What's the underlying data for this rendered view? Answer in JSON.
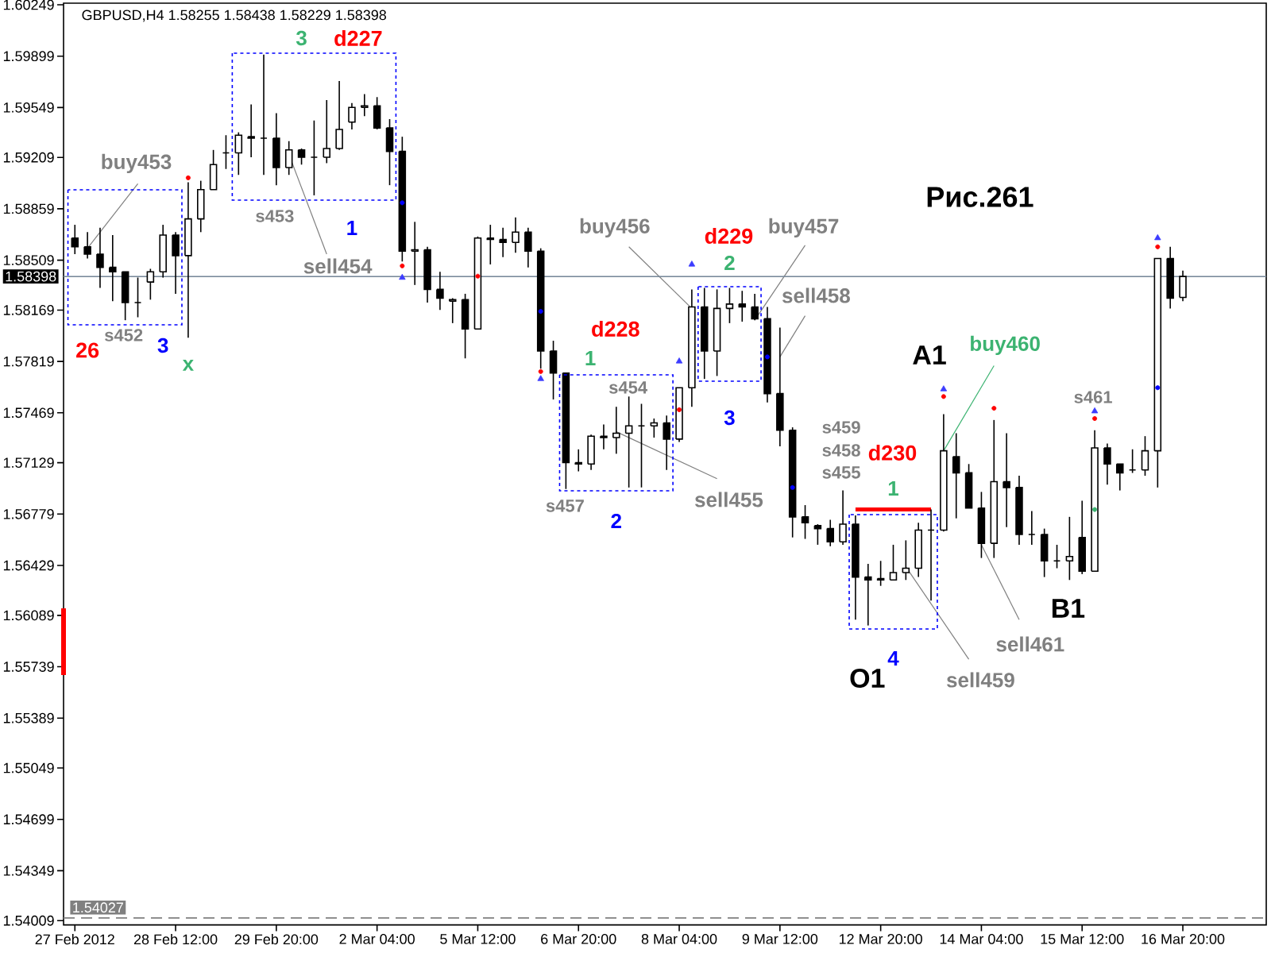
{
  "chart_data": {
    "type": "candlestick",
    "title": "GBPUSD,H4 1.58255 1.58438 1.58229 1.58398",
    "color": "#000000",
    "categories": [
      "27 Feb 2012",
      null,
      null,
      null,
      null,
      null,
      null,
      null,
      "28 Feb 12:00",
      null,
      null,
      null,
      null,
      null,
      null,
      null,
      "29 Feb 20:00",
      null,
      null,
      null,
      null,
      null,
      null,
      null,
      "2 Mar 04:00",
      null,
      null,
      null,
      null,
      null,
      null,
      null,
      "5 Mar 12:00",
      null,
      null,
      null,
      null,
      null,
      null,
      null,
      "6 Mar 20:00",
      null,
      null,
      null,
      null,
      null,
      null,
      null,
      "8 Mar 04:00",
      null,
      null,
      null,
      null,
      null,
      null,
      null,
      "9 Mar 12:00",
      null,
      null,
      null,
      null,
      null,
      null,
      null,
      "12 Mar 20:00",
      null,
      null,
      null,
      null,
      null,
      null,
      null,
      "14 Mar 04:00",
      null,
      null,
      null,
      null,
      null,
      null,
      null,
      "15 Mar 12:00",
      null,
      null,
      null,
      null,
      null,
      null,
      null,
      "16 Mar 20:00"
    ],
    "ohlc": [
      [
        1.5866,
        1.5875,
        1.5855,
        1.586
      ],
      [
        1.586,
        1.587,
        1.5852,
        1.5855
      ],
      [
        1.5855,
        1.5873,
        1.5832,
        1.5846
      ],
      [
        1.5846,
        1.5868,
        1.5823,
        1.5843
      ],
      [
        1.5843,
        1.5843,
        1.581,
        1.5822
      ],
      [
        1.5822,
        1.5839,
        1.5812,
        1.5822
      ],
      [
        1.5836,
        1.5845,
        1.5824,
        1.5843
      ],
      [
        1.5843,
        1.5875,
        1.5839,
        1.5868
      ],
      [
        1.5868,
        1.587,
        1.5828,
        1.5854
      ],
      [
        1.5854,
        1.5904,
        1.5798,
        1.5879
      ],
      [
        1.5879,
        1.5905,
        1.587,
        1.5899
      ],
      [
        1.5899,
        1.5926,
        1.5899,
        1.5916
      ],
      [
        1.5924,
        1.5936,
        1.5913,
        1.5924
      ],
      [
        1.5924,
        1.5938,
        1.5909,
        1.5936
      ],
      [
        1.5935,
        1.5957,
        1.5921,
        1.5934
      ],
      [
        1.5934,
        1.5991,
        1.5909,
        1.5934
      ],
      [
        1.5934,
        1.5951,
        1.5902,
        1.5914
      ],
      [
        1.5914,
        1.5932,
        1.5909,
        1.5926
      ],
      [
        1.5926,
        1.5927,
        1.5916,
        1.5921
      ],
      [
        1.5921,
        1.5946,
        1.5895,
        1.5921
      ],
      [
        1.5921,
        1.596,
        1.5917,
        1.5927
      ],
      [
        1.5927,
        1.5973,
        1.5926,
        1.594
      ],
      [
        1.5945,
        1.5958,
        1.594,
        1.5955
      ],
      [
        1.5955,
        1.5964,
        1.5949,
        1.5956
      ],
      [
        1.5956,
        1.5962,
        1.594,
        1.5941
      ],
      [
        1.5941,
        1.5947,
        1.5902,
        1.5925
      ],
      [
        1.5925,
        1.5935,
        1.585,
        1.5857
      ],
      [
        1.5857,
        1.5877,
        1.5834,
        1.5858
      ],
      [
        1.5858,
        1.586,
        1.5822,
        1.5831
      ],
      [
        1.5831,
        1.5843,
        1.5817,
        1.5825
      ],
      [
        1.5823,
        1.5825,
        1.5808,
        1.5824
      ],
      [
        1.5824,
        1.5828,
        1.5784,
        1.5804
      ],
      [
        1.5804,
        1.5867,
        1.5804,
        1.5866
      ],
      [
        1.5866,
        1.5875,
        1.5848,
        1.5865
      ],
      [
        1.5865,
        1.5873,
        1.5853,
        1.5863
      ],
      [
        1.5863,
        1.588,
        1.5856,
        1.587
      ],
      [
        1.587,
        1.5873,
        1.5846,
        1.5857
      ],
      [
        1.5857,
        1.5859,
        1.5777,
        1.5789
      ],
      [
        1.5789,
        1.5796,
        1.5756,
        1.5774
      ],
      [
        1.5774,
        1.5774,
        1.5695,
        1.5713
      ],
      [
        1.5713,
        1.5722,
        1.5707,
        1.5712
      ],
      [
        1.5712,
        1.5732,
        1.5708,
        1.5731
      ],
      [
        1.5731,
        1.5739,
        1.5722,
        1.573
      ],
      [
        1.573,
        1.5751,
        1.5719,
        1.5733
      ],
      [
        1.5733,
        1.5758,
        1.5696,
        1.5738
      ],
      [
        1.5738,
        1.5753,
        1.5696,
        1.5738
      ],
      [
        1.5738,
        1.5743,
        1.573,
        1.574
      ],
      [
        1.574,
        1.5745,
        1.5708,
        1.5729
      ],
      [
        1.5729,
        1.5764,
        1.5727,
        1.5764
      ],
      [
        1.5764,
        1.5831,
        1.5751,
        1.5819
      ],
      [
        1.5819,
        1.5832,
        1.577,
        1.5789
      ],
      [
        1.5789,
        1.5831,
        1.5772,
        1.5818
      ],
      [
        1.5818,
        1.5832,
        1.5808,
        1.5821
      ],
      [
        1.5821,
        1.583,
        1.5809,
        1.5819
      ],
      [
        1.5819,
        1.5828,
        1.581,
        1.5811
      ],
      [
        1.5811,
        1.5819,
        1.5754,
        1.576
      ],
      [
        1.576,
        1.5805,
        1.5724,
        1.5735
      ],
      [
        1.5735,
        1.5737,
        1.5662,
        1.5676
      ],
      [
        1.5676,
        1.5684,
        1.5661,
        1.5672
      ],
      [
        1.567,
        1.5671,
        1.5657,
        1.5668
      ],
      [
        1.5668,
        1.5674,
        1.5656,
        1.5659
      ],
      [
        1.5659,
        1.5694,
        1.5657,
        1.5671
      ],
      [
        1.5671,
        1.5677,
        1.5606,
        1.5635
      ],
      [
        1.5635,
        1.5644,
        1.5602,
        1.5633
      ],
      [
        1.5634,
        1.5646,
        1.5629,
        1.5633
      ],
      [
        1.5633,
        1.5657,
        1.5633,
        1.5638
      ],
      [
        1.5638,
        1.566,
        1.5633,
        1.5641
      ],
      [
        1.5641,
        1.5672,
        1.5635,
        1.5667
      ],
      [
        1.5667,
        1.5681,
        1.5619,
        1.5667
      ],
      [
        1.5667,
        1.5746,
        1.5666,
        1.5721
      ],
      [
        1.5717,
        1.5733,
        1.5675,
        1.5706
      ],
      [
        1.5706,
        1.5712,
        1.5682,
        1.5682
      ],
      [
        1.5682,
        1.5693,
        1.5648,
        1.5658
      ],
      [
        1.5658,
        1.5742,
        1.5648,
        1.57
      ],
      [
        1.57,
        1.5733,
        1.5669,
        1.5696
      ],
      [
        1.5696,
        1.5704,
        1.5657,
        1.5664
      ],
      [
        1.5664,
        1.568,
        1.5657,
        1.5664
      ],
      [
        1.5664,
        1.5668,
        1.5635,
        1.5646
      ],
      [
        1.5646,
        1.5657,
        1.5641,
        1.5646
      ],
      [
        1.5646,
        1.5676,
        1.5633,
        1.5649
      ],
      [
        1.5662,
        1.5687,
        1.5637,
        1.5639
      ],
      [
        1.5639,
        1.5735,
        1.5639,
        1.5723
      ],
      [
        1.5723,
        1.5726,
        1.5698,
        1.5712
      ],
      [
        1.5712,
        1.5712,
        1.5694,
        1.5706
      ],
      [
        1.5708,
        1.5722,
        1.5706,
        1.5708
      ],
      [
        1.5708,
        1.5731,
        1.5704,
        1.5721
      ],
      [
        1.5721,
        1.5852,
        1.5696,
        1.5852
      ],
      [
        1.5852,
        1.586,
        1.5818,
        1.5825
      ],
      [
        1.58255,
        1.58438,
        1.58229,
        1.58398
      ]
    ],
    "series": [
      {
        "type": "scatter",
        "color": "#ff0000",
        "marker": "circle",
        "values": [
          null,
          null,
          null,
          null,
          null,
          null,
          null,
          null,
          null,
          1.5907,
          null,
          null,
          null,
          null,
          null,
          null,
          null,
          null,
          null,
          null,
          null,
          null,
          null,
          null,
          null,
          null,
          1.5847,
          null,
          null,
          null,
          null,
          null,
          1.584,
          null,
          null,
          null,
          null,
          1.5775,
          null,
          null,
          null,
          null,
          null,
          null,
          null,
          null,
          null,
          null,
          1.5749,
          null,
          null,
          null,
          null,
          null,
          null,
          null,
          null,
          null,
          null,
          null,
          null,
          null,
          null,
          null,
          null,
          null,
          null,
          null,
          null,
          1.5758,
          null,
          null,
          null,
          1.575,
          null,
          null,
          null,
          null,
          null,
          null,
          null,
          1.5743,
          null,
          null,
          null,
          null,
          1.586,
          null,
          null
        ]
      },
      {
        "type": "scatter",
        "color": "#0000ff",
        "marker": "circle",
        "values": [
          null,
          null,
          null,
          null,
          null,
          null,
          null,
          null,
          null,
          null,
          null,
          null,
          null,
          null,
          null,
          null,
          null,
          null,
          null,
          null,
          null,
          null,
          null,
          null,
          null,
          null,
          1.589,
          null,
          null,
          null,
          null,
          null,
          null,
          null,
          null,
          null,
          null,
          1.5816,
          null,
          null,
          null,
          null,
          null,
          null,
          null,
          null,
          null,
          null,
          null,
          null,
          null,
          null,
          null,
          null,
          null,
          1.5785,
          null,
          1.5696,
          null,
          null,
          null,
          null,
          null,
          null,
          null,
          null,
          null,
          null,
          null,
          null,
          null,
          null,
          null,
          null,
          null,
          null,
          null,
          null,
          null,
          null,
          null,
          null,
          null,
          null,
          null,
          null,
          1.5764,
          null,
          null
        ]
      },
      {
        "type": "scatter",
        "color": "#3c3cff",
        "marker": "triangle",
        "values": [
          null,
          null,
          null,
          null,
          null,
          null,
          null,
          null,
          null,
          null,
          null,
          null,
          null,
          null,
          null,
          null,
          null,
          null,
          null,
          null,
          null,
          null,
          null,
          null,
          null,
          null,
          1.5839,
          null,
          null,
          null,
          null,
          null,
          null,
          null,
          null,
          null,
          null,
          1.577,
          null,
          null,
          null,
          null,
          null,
          null,
          null,
          null,
          null,
          null,
          1.5782,
          1.5848,
          null,
          null,
          null,
          null,
          null,
          null,
          null,
          null,
          null,
          null,
          null,
          null,
          null,
          null,
          null,
          null,
          null,
          null,
          null,
          1.5763,
          null,
          null,
          null,
          null,
          null,
          null,
          null,
          null,
          null,
          null,
          null,
          1.5748,
          null,
          null,
          null,
          null,
          1.5866,
          null,
          null
        ]
      },
      {
        "type": "scatter",
        "color": "#3cb371",
        "marker": "circle",
        "values": [
          null,
          null,
          null,
          null,
          null,
          null,
          null,
          null,
          null,
          null,
          null,
          null,
          null,
          null,
          null,
          null,
          null,
          null,
          null,
          null,
          null,
          null,
          null,
          null,
          null,
          null,
          null,
          null,
          null,
          null,
          null,
          null,
          null,
          null,
          null,
          null,
          null,
          null,
          null,
          null,
          null,
          null,
          null,
          null,
          null,
          null,
          null,
          null,
          null,
          null,
          null,
          null,
          null,
          null,
          null,
          null,
          null,
          null,
          null,
          null,
          null,
          null,
          null,
          null,
          null,
          null,
          null,
          null,
          null,
          null,
          null,
          null,
          null,
          null,
          null,
          null,
          null,
          null,
          null,
          null,
          null,
          1.5681,
          null,
          null,
          null,
          null,
          null,
          null,
          null
        ]
      },
      {
        "type": "line",
        "color": "#ff0000",
        "values": [
          null,
          null,
          null,
          null,
          null,
          null,
          null,
          null,
          null,
          null,
          null,
          null,
          null,
          null,
          null,
          null,
          null,
          null,
          null,
          null,
          null,
          null,
          null,
          null,
          null,
          null,
          null,
          null,
          null,
          null,
          null,
          null,
          null,
          null,
          null,
          null,
          null,
          null,
          null,
          null,
          null,
          null,
          null,
          null,
          null,
          null,
          null,
          null,
          null,
          null,
          null,
          null,
          null,
          null,
          null,
          null,
          null,
          null,
          null,
          null,
          null,
          null,
          1.5681,
          1.5681,
          1.5681,
          1.5681,
          1.5681,
          1.5681,
          1.5681,
          null,
          null,
          null,
          null,
          null,
          null,
          null,
          null,
          null,
          null,
          null,
          null,
          null,
          null,
          null,
          null,
          null,
          null,
          null,
          null
        ]
      },
      {
        "type": "line",
        "color": "#808080",
        "values": [
          null,
          1.5859,
          null,
          null,
          null,
          1.5903,
          null,
          null,
          null,
          null,
          null,
          null,
          null,
          null,
          null,
          null,
          null,
          null,
          null,
          null,
          null,
          null,
          null,
          null,
          null,
          null,
          null,
          null,
          null,
          null,
          null,
          null,
          null,
          null,
          null,
          null,
          null,
          null,
          null,
          null,
          null,
          null,
          null,
          null,
          null,
          null,
          null,
          null,
          null,
          null,
          null,
          null,
          null,
          null,
          null,
          null,
          null,
          null,
          null,
          null,
          null,
          null,
          null,
          null,
          null,
          null,
          null,
          null,
          null,
          null,
          null,
          null,
          null,
          null,
          null,
          null,
          null,
          null,
          null,
          null,
          null,
          null,
          null,
          null,
          null,
          null,
          null,
          null,
          null
        ]
      },
      {
        "type": "line",
        "color": "#808080",
        "values": [
          null,
          null,
          null,
          null,
          null,
          null,
          null,
          null,
          null,
          null,
          null,
          null,
          null,
          null,
          null,
          null,
          null,
          1.5923,
          null,
          null,
          1.5855,
          null,
          null,
          null,
          null,
          null,
          null,
          null,
          null,
          null,
          null,
          null,
          null,
          null,
          null,
          null,
          null,
          null,
          null,
          null,
          null,
          null,
          null,
          null,
          null,
          null,
          null,
          null,
          null,
          null,
          null,
          null,
          null,
          null,
          null,
          null,
          null,
          null,
          null,
          null,
          null,
          null,
          null,
          null,
          null,
          null,
          null,
          null,
          null,
          null,
          null,
          null,
          null,
          null,
          null,
          null,
          null,
          null,
          null,
          null,
          null,
          null,
          null,
          null,
          null,
          null,
          null,
          null,
          null
        ]
      },
      {
        "type": "line",
        "color": "#808080",
        "values": [
          null,
          null,
          null,
          null,
          null,
          null,
          null,
          null,
          null,
          null,
          null,
          null,
          null,
          null,
          null,
          null,
          null,
          null,
          null,
          null,
          null,
          null,
          null,
          null,
          null,
          null,
          null,
          null,
          null,
          null,
          null,
          null,
          null,
          null,
          null,
          null,
          null,
          null,
          null,
          null,
          null,
          null,
          null,
          null,
          1.586,
          null,
          null,
          null,
          null,
          1.5818,
          null,
          null,
          null,
          null,
          null,
          null,
          null,
          null,
          null,
          null,
          null,
          null,
          null,
          null,
          null,
          null,
          null,
          null,
          null,
          null,
          null,
          null,
          null,
          null,
          null,
          null,
          null,
          null,
          null,
          null,
          null,
          null,
          null,
          null,
          null,
          null,
          null,
          null,
          null
        ]
      },
      {
        "type": "line",
        "color": "#808080",
        "values": [
          null,
          null,
          null,
          null,
          null,
          null,
          null,
          null,
          null,
          null,
          null,
          null,
          null,
          null,
          null,
          null,
          null,
          null,
          null,
          null,
          null,
          null,
          null,
          null,
          null,
          null,
          null,
          null,
          null,
          null,
          null,
          null,
          null,
          null,
          null,
          null,
          null,
          null,
          null,
          null,
          null,
          null,
          null,
          null,
          null,
          null,
          null,
          null,
          null,
          null,
          null,
          null,
          null,
          null,
          1.581,
          null,
          null,
          null,
          1.5861,
          null,
          null,
          null,
          null,
          null,
          null,
          null,
          null,
          null,
          null,
          null,
          null,
          null,
          null,
          null,
          null,
          null,
          null,
          null,
          null,
          null,
          null,
          null,
          null,
          null,
          null,
          null,
          null,
          null,
          null
        ]
      },
      {
        "type": "line",
        "color": "#808080",
        "values": [
          null,
          null,
          null,
          null,
          null,
          null,
          null,
          null,
          null,
          null,
          null,
          null,
          null,
          null,
          null,
          null,
          null,
          null,
          null,
          null,
          null,
          null,
          null,
          null,
          null,
          null,
          null,
          null,
          null,
          null,
          null,
          null,
          null,
          null,
          null,
          null,
          null,
          null,
          null,
          null,
          null,
          null,
          null,
          null,
          null,
          null,
          null,
          null,
          null,
          null,
          null,
          null,
          null,
          null,
          null,
          null,
          1.5785,
          null,
          1.5813,
          null,
          null,
          null,
          null,
          null,
          null,
          null,
          null,
          null,
          null,
          null,
          null,
          null,
          null,
          null,
          null,
          null,
          null,
          null,
          null,
          null,
          null,
          null,
          null,
          null,
          null,
          null,
          null,
          null,
          null
        ]
      },
      {
        "type": "line",
        "color": "#808080",
        "values": [
          null,
          null,
          null,
          null,
          null,
          null,
          null,
          null,
          null,
          null,
          null,
          null,
          null,
          null,
          null,
          null,
          null,
          null,
          null,
          null,
          null,
          null,
          null,
          null,
          null,
          null,
          null,
          null,
          null,
          null,
          null,
          null,
          null,
          null,
          null,
          null,
          null,
          null,
          null,
          null,
          null,
          null,
          null,
          1.5734,
          null,
          null,
          null,
          null,
          null,
          null,
          null,
          1.5702,
          null,
          null,
          null,
          null,
          null,
          null,
          null,
          null,
          null,
          null,
          null,
          null,
          null,
          null,
          null,
          null,
          null,
          null,
          null,
          null,
          null,
          null,
          null,
          null,
          null,
          null,
          null,
          null,
          null,
          null,
          null,
          null,
          null,
          null,
          null,
          null,
          null
        ]
      },
      {
        "type": "line",
        "color": "#3cb371",
        "values": [
          null,
          null,
          null,
          null,
          null,
          null,
          null,
          null,
          null,
          null,
          null,
          null,
          null,
          null,
          null,
          null,
          null,
          null,
          null,
          null,
          null,
          null,
          null,
          null,
          null,
          null,
          null,
          null,
          null,
          null,
          null,
          null,
          null,
          null,
          null,
          null,
          null,
          null,
          null,
          null,
          null,
          null,
          null,
          null,
          null,
          null,
          null,
          null,
          null,
          null,
          null,
          null,
          null,
          null,
          null,
          null,
          null,
          null,
          null,
          null,
          null,
          null,
          null,
          null,
          null,
          null,
          null,
          null,
          null,
          1.5721,
          null,
          null,
          null,
          1.5779,
          null,
          null,
          null,
          null,
          null,
          null,
          null,
          null,
          null,
          null,
          null,
          null,
          null,
          null,
          null
        ]
      },
      {
        "type": "line",
        "color": "#808080",
        "values": [
          null,
          null,
          null,
          null,
          null,
          null,
          null,
          null,
          null,
          null,
          null,
          null,
          null,
          null,
          null,
          null,
          null,
          null,
          null,
          null,
          null,
          null,
          null,
          null,
          null,
          null,
          null,
          null,
          null,
          null,
          null,
          null,
          null,
          null,
          null,
          null,
          null,
          null,
          null,
          null,
          null,
          null,
          null,
          null,
          null,
          null,
          null,
          null,
          null,
          null,
          null,
          null,
          null,
          null,
          null,
          null,
          null,
          null,
          null,
          null,
          null,
          null,
          null,
          null,
          null,
          null,
          1.5642,
          null,
          null,
          null,
          null,
          1.5579,
          null,
          null,
          null,
          null,
          null,
          null,
          null,
          null,
          null,
          null,
          null,
          null,
          null,
          null,
          null,
          null,
          null
        ]
      },
      {
        "type": "line",
        "color": "#808080",
        "values": [
          null,
          null,
          null,
          null,
          null,
          null,
          null,
          null,
          null,
          null,
          null,
          null,
          null,
          null,
          null,
          null,
          null,
          null,
          null,
          null,
          null,
          null,
          null,
          null,
          null,
          null,
          null,
          null,
          null,
          null,
          null,
          null,
          null,
          null,
          null,
          null,
          null,
          null,
          null,
          null,
          null,
          null,
          null,
          null,
          null,
          null,
          null,
          null,
          null,
          null,
          null,
          null,
          null,
          null,
          null,
          null,
          null,
          null,
          null,
          null,
          null,
          null,
          null,
          null,
          null,
          null,
          null,
          null,
          null,
          null,
          null,
          null,
          1.5657,
          null,
          null,
          1.5606,
          null,
          null,
          null,
          null,
          null,
          null,
          null,
          null,
          null,
          null,
          null,
          null,
          null
        ]
      }
    ],
    "ylim": [
      1.5398,
      1.6026
    ],
    "yticks": [
      1.60249,
      1.59899,
      1.59549,
      1.59209,
      1.58859,
      1.58509,
      1.58169,
      1.57819,
      1.57469,
      1.57129,
      1.56779,
      1.56429,
      1.56089,
      1.55739,
      1.55389,
      1.55049,
      1.54699,
      1.54349,
      1.54009
    ],
    "ref_lines": [
      {
        "axis": "y",
        "value": 1.58398,
        "label": "1.58398",
        "color": "#778899",
        "line_style": "solid"
      },
      {
        "axis": "y",
        "value": 1.54027,
        "label": "1.54027",
        "color": "#808080",
        "line_style": "dashed"
      }
    ],
    "annotations": [
      "Рис.261",
      "buy453",
      "s453",
      "1",
      "sell454",
      "s452",
      "26",
      "3",
      "x",
      "3",
      "d227",
      "buy456",
      "d229",
      "buy457",
      "2",
      "sell458",
      "d228",
      "1",
      "s454",
      "3",
      "s459",
      "s458",
      "d230",
      "s455",
      "1",
      "sell455",
      "s457",
      "2",
      "4",
      "O1",
      "A1",
      "buy460",
      "s461",
      "B1",
      "sell461",
      "sell459"
    ]
  }
}
